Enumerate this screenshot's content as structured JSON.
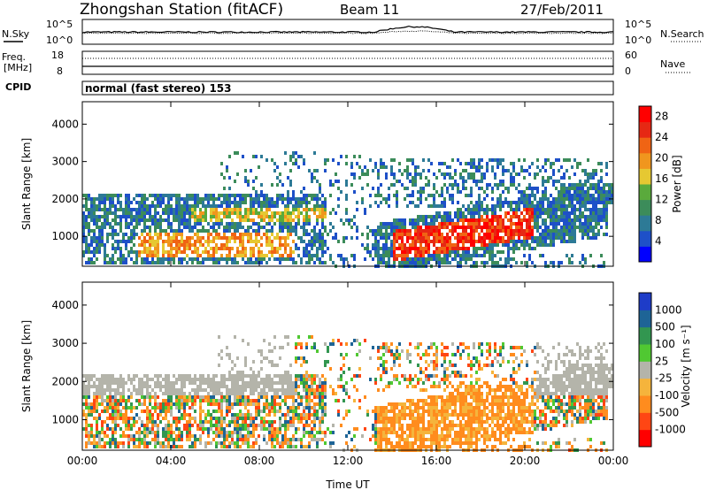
{
  "header": {
    "station": "Zhongshan Station (fitACF)",
    "beam": "Beam 11",
    "date": "27/Feb/2011"
  },
  "top_strip": {
    "left_label": "N.Sky",
    "right_label": "N.Search",
    "left_ticks": [
      "10^5",
      "10^0"
    ],
    "right_ticks": [
      "10^5",
      "10^0"
    ]
  },
  "freq_strip": {
    "left_label_1": "Freq.",
    "left_label_2": "[MHz]",
    "right_label": "Nave",
    "left_ticks": [
      "18",
      "8"
    ],
    "right_ticks": [
      "60",
      "0"
    ]
  },
  "cpid_strip": {
    "label": "CPID",
    "text": "normal (fast stereo) 153"
  },
  "colors": {
    "power": [
      "#0000ff",
      "#1e50c8",
      "#2d7a96",
      "#3c8c5a",
      "#5aaa3c",
      "#e6c832",
      "#f0961e",
      "#f06414",
      "#e62814",
      "#ff0000"
    ],
    "velocity": [
      "#ff0000",
      "#ff4614",
      "#ff8c1e",
      "#f5b43c",
      "#b4b4aa",
      "#50c832",
      "#329650",
      "#1e6496",
      "#1e3cc8"
    ]
  },
  "chart_data": [
    {
      "type": "heatmap",
      "title": "",
      "ylabel": "Slant Range [km]",
      "xlabel": "",
      "ylim": [
        200,
        4600
      ],
      "y_ticks": [
        "1000",
        "2000",
        "3000",
        "4000"
      ],
      "x_ticks": [
        "00:00",
        "04:00",
        "08:00",
        "12:00",
        "16:00",
        "20:00",
        "00:00"
      ],
      "colorbar": {
        "label": "Power [dB]",
        "ticks": [
          "4",
          "8",
          "12",
          "16",
          "20",
          "24",
          "28"
        ],
        "range": [
          0,
          30
        ]
      }
    },
    {
      "type": "heatmap",
      "title": "",
      "ylabel": "Slant Range [km]",
      "xlabel": "Time UT",
      "ylim": [
        200,
        4600
      ],
      "y_ticks": [
        "1000",
        "2000",
        "3000",
        "4000"
      ],
      "x_ticks": [
        "00:00",
        "04:00",
        "08:00",
        "12:00",
        "16:00",
        "20:00",
        "00:00"
      ],
      "colorbar": {
        "label": "Velocity [m s⁻¹]",
        "ticks": [
          "1000",
          "500",
          "100",
          "25",
          "-25",
          "-100",
          "-500",
          "-1000"
        ]
      }
    }
  ]
}
